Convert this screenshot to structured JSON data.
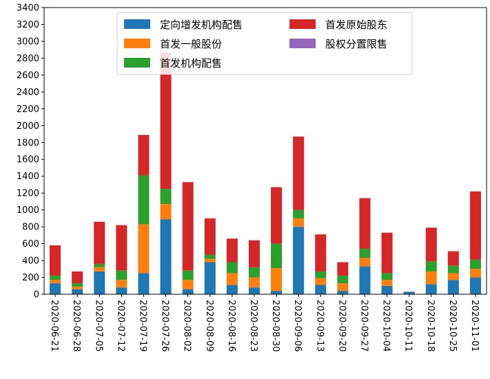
{
  "chart_data": {
    "type": "bar",
    "stacked": true,
    "title": "",
    "xlabel": "",
    "ylabel": "",
    "ylim": [
      0,
      3400
    ],
    "y_ticks": [
      0,
      200,
      400,
      600,
      800,
      1000,
      1200,
      1400,
      1600,
      1800,
      2000,
      2200,
      2400,
      2600,
      2800,
      3000,
      3200,
      3400
    ],
    "grid": false,
    "legend_position": "top-center",
    "categories": [
      "2020-06-21",
      "2020-06-28",
      "2020-07-05",
      "2020-07-12",
      "2020-07-19",
      "2020-07-26",
      "2020-08-02",
      "2020-08-09",
      "2020-08-16",
      "2020-08-23",
      "2020-08-30",
      "2020-09-06",
      "2020-09-13",
      "2020-09-20",
      "2020-09-27",
      "2020-10-04",
      "2020-10-11",
      "2020-10-18",
      "2020-10-25",
      "2020-11-01"
    ],
    "series": [
      {
        "name": "定向增发机构配售",
        "color": "#1f77b4",
        "values": [
          130,
          60,
          270,
          80,
          250,
          890,
          60,
          380,
          110,
          80,
          40,
          800,
          110,
          40,
          330,
          100,
          30,
          120,
          170,
          200
        ]
      },
      {
        "name": "首发一般股份",
        "color": "#ff7f0e",
        "values": [
          40,
          30,
          50,
          90,
          580,
          180,
          110,
          40,
          140,
          120,
          270,
          100,
          80,
          90,
          100,
          70,
          0,
          150,
          80,
          100
        ]
      },
      {
        "name": "首发机构配售",
        "color": "#2ca02c",
        "values": [
          50,
          40,
          40,
          110,
          580,
          180,
          110,
          50,
          130,
          120,
          290,
          100,
          80,
          90,
          110,
          80,
          0,
          120,
          90,
          110
        ]
      },
      {
        "name": "首发原始股东",
        "color": "#d62728",
        "values": [
          360,
          140,
          500,
          540,
          480,
          1620,
          1050,
          430,
          280,
          320,
          670,
          870,
          440,
          160,
          600,
          480,
          0,
          400,
          170,
          810
        ]
      },
      {
        "name": "股权分置限售",
        "color": "#9467bd",
        "values": [
          0,
          0,
          0,
          0,
          0,
          0,
          0,
          0,
          0,
          0,
          0,
          0,
          0,
          0,
          0,
          0,
          0,
          0,
          0,
          0
        ]
      }
    ],
    "legend_order": [
      "定向增发机构配售",
      "首发一般股份",
      "首发机构配售",
      "首发原始股东",
      "股权分置限售"
    ]
  }
}
